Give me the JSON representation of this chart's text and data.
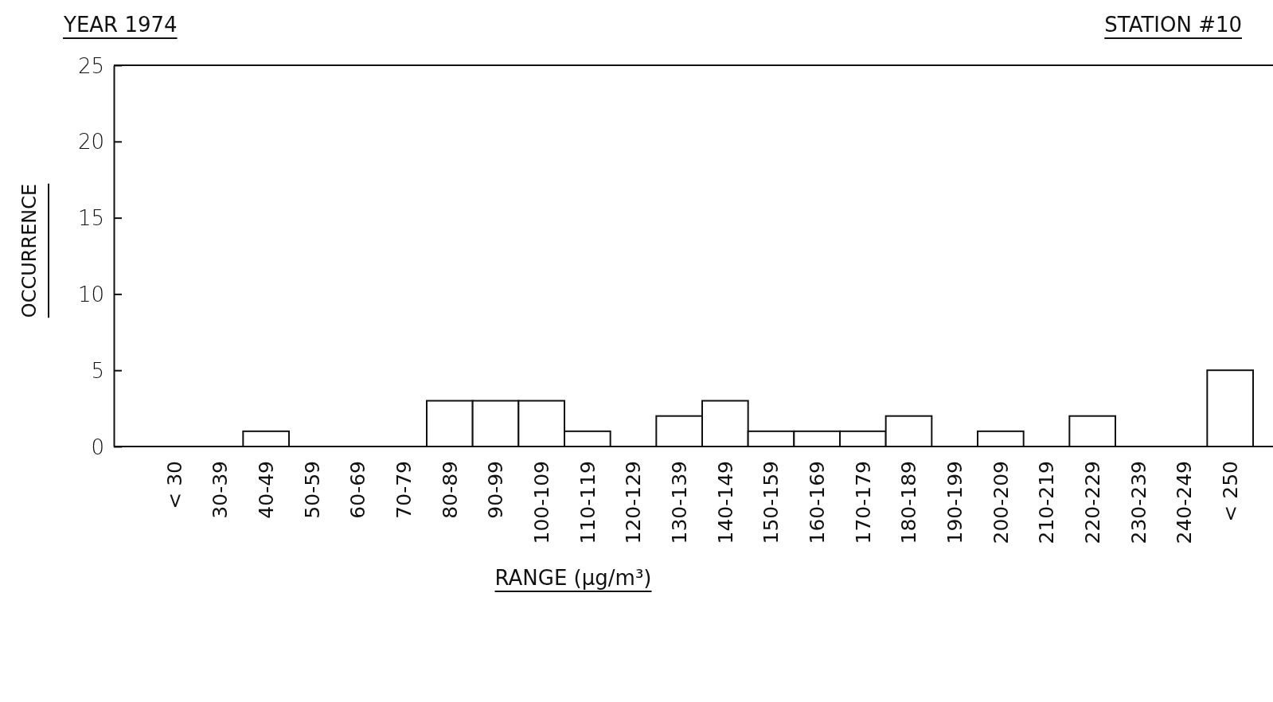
{
  "chart_data": {
    "type": "bar",
    "title": "YEAR 1974",
    "subtitle": "STATION #10",
    "xlabel": "RANGE (µg/m³)",
    "ylabel": "OCCURRENCE",
    "categories": [
      "< 30",
      "30-39",
      "40-49",
      "50-59",
      "60-69",
      "70-79",
      "80-89",
      "90-99",
      "100-109",
      "110-119",
      "120-129",
      "130-139",
      "140-149",
      "150-159",
      "160-169",
      "170-179",
      "180-189",
      "190-199",
      "200-209",
      "210-219",
      "220-229",
      "230-239",
      "240-249",
      "< 250"
    ],
    "values": [
      0,
      0,
      1,
      0,
      0,
      0,
      3,
      3,
      3,
      1,
      0,
      2,
      3,
      1,
      1,
      1,
      2,
      0,
      1,
      0,
      2,
      0,
      0,
      5
    ],
    "color": "#ffffff",
    "ylim": [
      0,
      25
    ],
    "yticks": [
      0,
      5,
      10,
      15,
      20,
      25
    ],
    "grid": false
  }
}
